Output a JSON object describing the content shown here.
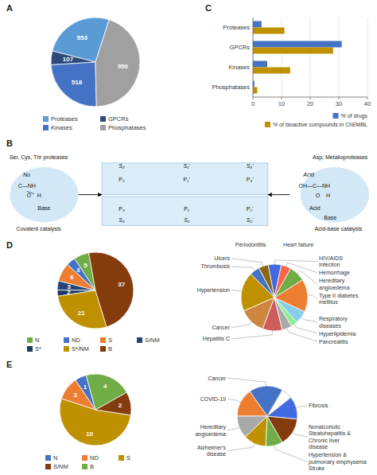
{
  "chart_data": [
    {
      "type": "pie",
      "title": "A",
      "categories": [
        "Proteases",
        "GPCRs",
        "Kinases",
        "Phosphatases"
      ],
      "values": [
        553,
        107,
        518,
        950
      ],
      "colors": [
        "#5B9BD5",
        "#2E4A7A",
        "#4472C4",
        "#A0A0A0"
      ],
      "data_labels": true,
      "legend": "bottom"
    },
    {
      "type": "bar",
      "title": "C",
      "orientation": "horizontal",
      "categories": [
        "Phosphatases",
        "Kinases",
        "GPCRs",
        "Proteases"
      ],
      "series": [
        {
          "name": "% of drugs",
          "color": "#4472C4",
          "values": [
            0.5,
            5,
            31,
            3
          ]
        },
        {
          "name": "% of bioactive compounds in ChEMBL",
          "color": "#BF9000",
          "values": [
            1.5,
            13,
            28,
            11
          ]
        }
      ],
      "xlim": [
        0,
        40
      ],
      "xticks": [
        0,
        10,
        20,
        30,
        40
      ],
      "grid": true,
      "legend": "lower right"
    },
    {
      "type": "diagram",
      "title": "B",
      "annotations": [
        "Ser, Cys, Thr proteases",
        "Asp, Metalloproteases",
        "Nu",
        "Ċ—NH",
        "O    H",
        "Base",
        "Covalent catalysis",
        "Acid",
        "OH—C—NH",
        "O    H",
        "Acid",
        "Base",
        "Acid-base catalysis",
        "S₂",
        "S₁’",
        "S₃’",
        "S₃",
        "S₁",
        "S₂’",
        "P₂",
        "P₁’",
        "P₃’",
        "P₃",
        "P₁",
        "P₂’"
      ]
    },
    {
      "type": "pie",
      "title": "D",
      "categories": [
        "N",
        "ND",
        "S",
        "S/NM",
        "S*",
        "S*/NM",
        "B"
      ],
      "values": [
        5,
        3,
        6,
        3,
        2,
        21,
        37
      ],
      "colors": [
        "#70AD47",
        "#4472C4",
        "#ED7D31",
        "#264478",
        "#1F3864",
        "#BF9000",
        "#843C0C"
      ],
      "data_labels": true,
      "legend": "bottom"
    },
    {
      "type": "pie",
      "categories": [
        "HIV/AIDS\nInfection",
        "Ulcers",
        "Thrombosis",
        "Hypertension",
        "Cancer",
        "Hepatitis C",
        "Pancreatitis",
        "Hyperlipidemia",
        "Respiratory\ndiseases",
        "Type II diabetes\nmellitus",
        "Hereditary\nangioedema",
        "Hemorrhage"
      ],
      "values": [
        4,
        3,
        3,
        12,
        8,
        6,
        3,
        2,
        4,
        10,
        5,
        3
      ],
      "colors": [
        "#4169E1",
        "#8B6914",
        "#4472C4",
        "#BF9000",
        "#CD853F",
        "#CD5C5C",
        "#A9A9A9",
        "#90EE90",
        "#87CEEB",
        "#ED7D31",
        "#70AD47",
        "#FF6347"
      ],
      "annotations": [
        "Periodontitis",
        "Heart failure"
      ]
    },
    {
      "type": "pie",
      "title": "E",
      "categories": [
        "N",
        "ND",
        "S",
        "S/NM",
        "B"
      ],
      "values": [
        1,
        2,
        10,
        2,
        4
      ],
      "colors": [
        "#4472C4",
        "#ED7D31",
        "#BF9000",
        "#843C0C",
        "#70AD47"
      ],
      "data_labels": true,
      "legend": "bottom"
    },
    {
      "type": "pie",
      "categories": [
        "Cancer",
        "COVID-19",
        "Hereditary\nangioedema",
        "Alzheimer's\ndisease",
        "Hypertension &\npulmonary emphysema\nStroke",
        "Nonalcoholic\nSteatohepatitis &\nChronic liver\ndisease",
        "Fibrosis",
        null
      ],
      "values": [
        6,
        5,
        4,
        4,
        3,
        5,
        4,
        2
      ],
      "colors": [
        "#4472C4",
        "#ED7D31",
        "#A9A9A9",
        "#BF9000",
        "#70AD47",
        "#843C0C",
        "#4169E1",
        "#FFFFFF"
      ]
    }
  ]
}
